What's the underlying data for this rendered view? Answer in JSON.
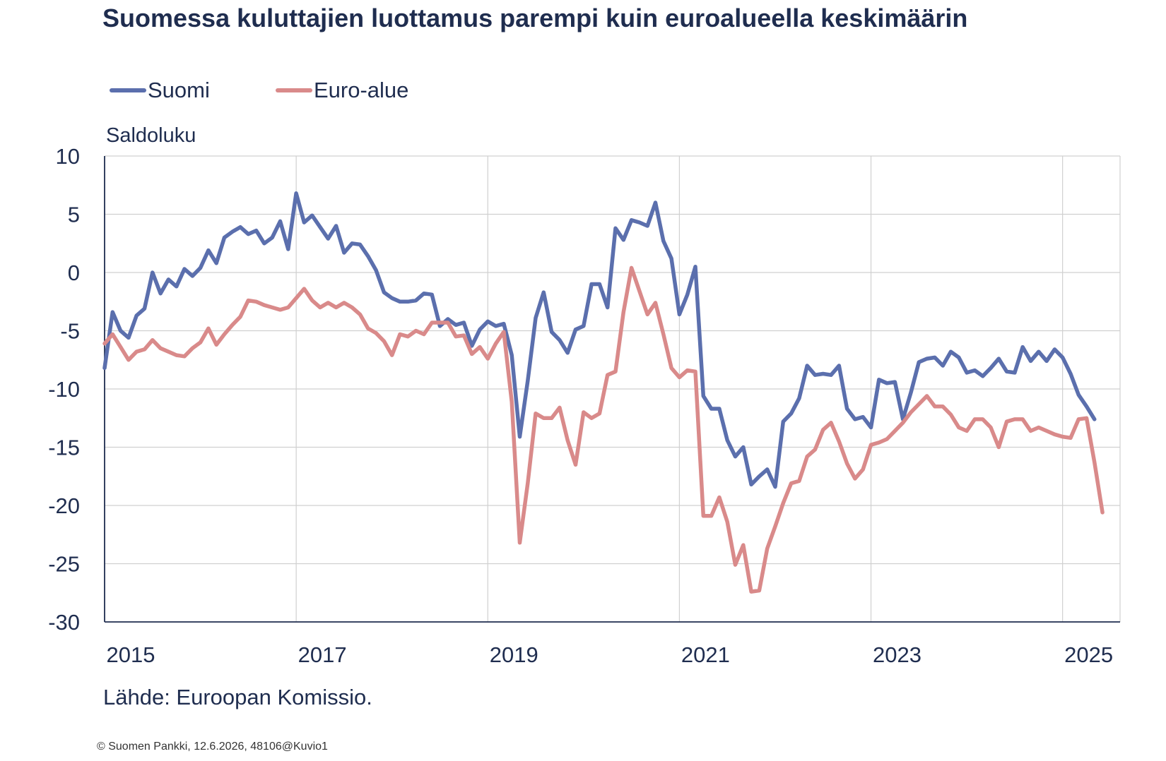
{
  "chart_data": {
    "type": "line",
    "title": "Suomessa kuluttajien luottamus parempi kuin euroalueella keskimäärin",
    "ylabel": "Saldoluku",
    "xlabel": "",
    "ylim": [
      -30,
      10
    ],
    "yticks": [
      10,
      5,
      0,
      -5,
      -10,
      -15,
      -20,
      -25,
      -30
    ],
    "xlim": [
      2015.0,
      2025.6
    ],
    "xticks": [
      2015,
      2017,
      2019,
      2021,
      2023,
      2025
    ],
    "x_tick_labels": [
      "2015",
      "2017",
      "2019",
      "2021",
      "2023",
      "2025"
    ],
    "grid": true,
    "legend": "top-left",
    "series": [
      {
        "name": "Suomi",
        "color": "#5b6fad",
        "x_start": "2015-01",
        "values": [
          -8.2,
          -3.4,
          -5.0,
          -5.6,
          -3.7,
          -3.1,
          0.0,
          -1.8,
          -0.6,
          -1.2,
          0.3,
          -0.3,
          0.4,
          1.9,
          0.8,
          3.0,
          3.5,
          3.9,
          3.3,
          3.6,
          2.5,
          3.0,
          4.4,
          2.0,
          6.8,
          4.3,
          4.9,
          3.9,
          2.9,
          4.0,
          1.7,
          2.5,
          2.4,
          1.4,
          0.2,
          -1.7,
          -2.2,
          -2.5,
          -2.5,
          -2.4,
          -1.8,
          -1.9,
          -4.6,
          -4.0,
          -4.5,
          -4.3,
          -6.3,
          -4.9,
          -4.2,
          -4.6,
          -4.4,
          -7.1,
          -14.1,
          -9.3,
          -3.9,
          -1.7,
          -5.1,
          -5.8,
          -6.9,
          -4.9,
          -4.6,
          -1.0,
          -1.0,
          -3.0,
          3.8,
          2.8,
          4.5,
          4.3,
          4.0,
          6.0,
          2.7,
          1.2,
          -3.6,
          -1.9,
          0.5,
          -10.6,
          -11.7,
          -11.7,
          -14.4,
          -15.8,
          -15.0,
          -18.2,
          -17.5,
          -16.9,
          -18.4,
          -12.8,
          -12.1,
          -10.8,
          -8.0,
          -8.8,
          -8.7,
          -8.8,
          -8.0,
          -11.7,
          -12.6,
          -12.4,
          -13.3,
          -9.2,
          -9.5,
          -9.4,
          -12.6,
          -10.3,
          -7.7,
          -7.4,
          -7.3,
          -8.0,
          -6.8,
          -7.3,
          -8.6,
          -8.4,
          -8.9,
          -8.2,
          -7.4,
          -8.5,
          -8.6,
          -6.4,
          -7.6,
          -6.8,
          -7.6,
          -6.6,
          -7.3,
          -8.7,
          -10.5,
          -11.5,
          -12.6
        ]
      },
      {
        "name": "Euro-alue",
        "color": "#d98a8a",
        "x_start": "2015-01",
        "values": [
          -6.1,
          -5.3,
          -6.4,
          -7.5,
          -6.8,
          -6.6,
          -5.8,
          -6.5,
          -6.8,
          -7.1,
          -7.2,
          -6.5,
          -6.0,
          -4.8,
          -6.2,
          -5.3,
          -4.5,
          -3.8,
          -2.4,
          -2.5,
          -2.8,
          -3.0,
          -3.2,
          -3.0,
          -2.2,
          -1.4,
          -2.4,
          -3.0,
          -2.6,
          -3.0,
          -2.6,
          -3.0,
          -3.6,
          -4.8,
          -5.2,
          -5.9,
          -7.1,
          -5.3,
          -5.5,
          -5.0,
          -5.3,
          -4.3,
          -4.3,
          -4.3,
          -5.5,
          -5.4,
          -7.0,
          -6.4,
          -7.4,
          -6.1,
          -5.1,
          -11.1,
          -23.2,
          -18.1,
          -12.1,
          -12.5,
          -12.5,
          -11.6,
          -14.4,
          -16.5,
          -12.0,
          -12.5,
          -12.1,
          -8.8,
          -8.5,
          -3.4,
          0.4,
          -1.6,
          -3.6,
          -2.6,
          -5.3,
          -8.2,
          -9.0,
          -8.4,
          -8.5,
          -20.9,
          -20.9,
          -19.3,
          -21.4,
          -25.1,
          -23.4,
          -27.4,
          -27.3,
          -23.7,
          -21.8,
          -19.8,
          -18.1,
          -17.9,
          -15.8,
          -15.2,
          -13.5,
          -12.9,
          -14.5,
          -16.4,
          -17.7,
          -16.9,
          -14.8,
          -14.6,
          -14.3,
          -13.6,
          -12.9,
          -12.0,
          -11.3,
          -10.6,
          -11.5,
          -11.5,
          -12.2,
          -13.3,
          -13.6,
          -12.6,
          -12.6,
          -13.3,
          -15.0,
          -12.8,
          -12.6,
          -12.6,
          -13.6,
          -13.3,
          -13.6,
          -13.9,
          -14.1,
          -14.2,
          -12.6,
          -12.5,
          -16.3,
          -20.6
        ]
      }
    ]
  },
  "source_note": "Lähde: Euroopan Komissio.",
  "copyright": "© Suomen Pankki, 12.6.2026, 48106@Kuvio1"
}
